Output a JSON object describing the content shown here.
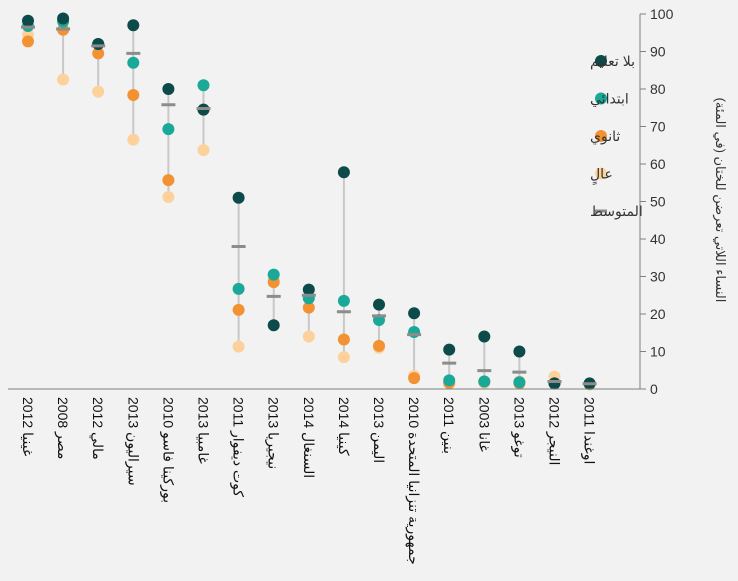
{
  "chart_data": {
    "type": "scatter",
    "ylabel": "النساء اللاتي تعرضن للختان (في المئة)",
    "ylim": [
      0,
      100
    ],
    "yticks": [
      0,
      10,
      20,
      30,
      40,
      50,
      60,
      70,
      80,
      90,
      100
    ],
    "y_axis_position": "right",
    "grid": false,
    "legend_position": "top-right",
    "categories": [
      "غينيا 2012",
      "مصر 2008",
      "مالي 2012",
      "سيراليون 2013",
      "بوركينا فاسو 2010",
      "غامبيا 2013",
      "كوت ديفوار 2011",
      "نيجيريا 2013",
      "السنغال 2014",
      "كينيا 2014",
      "اليمن 2013",
      "جمهورية تنزانيا المتحدة 2010",
      "بنين 2011",
      "غانا 2003",
      "توغو 2013",
      "النيجر 2012",
      "اوغندا 2011"
    ],
    "series": [
      {
        "name": "بلا تعليم",
        "color": "#0d4a4a",
        "marker": "circle",
        "values": [
          98.2,
          98.8,
          92,
          97,
          80,
          74.5,
          51,
          17,
          26.5,
          57.8,
          22.5,
          20.2,
          10.5,
          14,
          10,
          1.5,
          1.5
        ]
      },
      {
        "name": "ابتدائي",
        "color": "#1aa898",
        "marker": "circle",
        "values": [
          96.8,
          98,
          92,
          87,
          69.3,
          81,
          26.7,
          30.5,
          24.2,
          23.5,
          18.4,
          15.2,
          2.3,
          2,
          1.8,
          1.5,
          1.4
        ]
      },
      {
        "name": "ثانوي",
        "color": "#f39232",
        "marker": "circle",
        "values": [
          92.7,
          95.8,
          89.5,
          78.4,
          55.7,
          74.5,
          21.1,
          28.5,
          21.7,
          13.2,
          11.5,
          2.9,
          1.6,
          2,
          1.5,
          1.4,
          1.3
        ]
      },
      {
        "name": "عالٍ",
        "color": "#fdd19c",
        "marker": "circle",
        "values": [
          94.5,
          82.5,
          79.3,
          66.5,
          51.2,
          63.7,
          11.3,
          29,
          14,
          8.5,
          11,
          3.5,
          1.6,
          1.6,
          2,
          3.3,
          1.2
        ]
      },
      {
        "name": "المتوسط",
        "color": "#8c8c8c",
        "marker": "dash",
        "values": [
          96.5,
          96,
          91.5,
          89.5,
          75.8,
          74.8,
          38,
          24.7,
          25,
          20.6,
          19.5,
          14.5,
          6.9,
          4.9,
          4.5,
          2,
          1.4
        ]
      }
    ]
  }
}
